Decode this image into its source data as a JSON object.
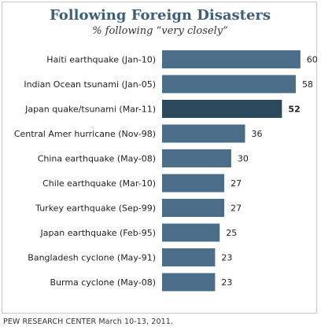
{
  "chart_data": {
    "type": "bar",
    "orientation": "horizontal",
    "title": "Following Foreign Disasters",
    "subtitle": "% following “very closely”",
    "categories": [
      "Haiti earthquake (Jan-10)",
      "Indian Ocean tsunami (Jan-05)",
      "Japan quake/tsunami (Mar-11)",
      "Central Amer hurricane (Nov-98)",
      "China earthquake (May-08)",
      "Chile earthquake (Mar-10)",
      "Turkey earthquake (Sep-99)",
      "Japan earthquake (Feb-95)",
      "Bangladesh cyclone (May-91)",
      "Burma cyclone (May-08)"
    ],
    "values": [
      60,
      58,
      52,
      36,
      30,
      27,
      27,
      25,
      23,
      23
    ],
    "highlight_index": 2,
    "xlim": [
      0,
      70
    ],
    "grid": false,
    "legend": "none",
    "colors": {
      "bar": "#4a6e8a",
      "highlight": "#2c4a5e",
      "title": "#3d5f7a"
    }
  },
  "source": "PEW RESEARCH CENTER March 10-13, 2011."
}
